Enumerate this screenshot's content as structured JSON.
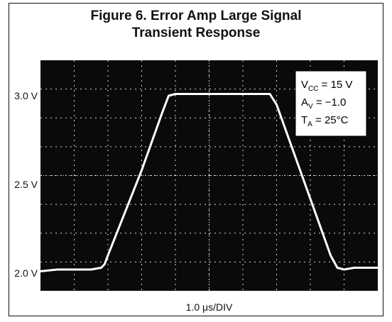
{
  "figure": {
    "title_line1": "Figure 6. Error Amp Large Signal",
    "title_line2": "Transient Response"
  },
  "chart_data": {
    "type": "line",
    "title": "Figure 6. Error Amp Large Signal Transient Response",
    "xlabel": "1.0 μs/DIV",
    "ylabel": "",
    "x_unit": "div",
    "xlim": [
      0,
      10
    ],
    "ylim": [
      1.9,
      3.2
    ],
    "y_ticks": [
      2.0,
      2.5,
      3.0
    ],
    "y_tick_labels": [
      "2.0 V",
      "2.5 V",
      "3.0 V"
    ],
    "grid": true,
    "background": "#0a0a0a",
    "trace_color": "#ffffff",
    "annotations": {
      "conditions": [
        {
          "main": "V",
          "sub": "CC",
          "rest": " = 15 V"
        },
        {
          "main": "A",
          "sub": "V",
          "rest": " = −1.0"
        },
        {
          "main": "T",
          "sub": "A",
          "rest": " = 25°C"
        }
      ]
    },
    "series": [
      {
        "x": [
          0.0,
          0.5,
          1.0,
          1.5,
          1.8,
          1.9,
          2.0,
          3.0,
          3.6,
          3.8,
          4.0,
          6.0,
          6.8,
          7.0,
          8.6,
          8.8,
          9.0,
          9.3,
          10.0
        ],
        "values": [
          2.01,
          2.02,
          2.02,
          2.02,
          2.03,
          2.05,
          2.1,
          2.58,
          2.9,
          3.0,
          3.01,
          3.01,
          3.01,
          2.95,
          2.1,
          2.03,
          2.02,
          2.03,
          2.03
        ]
      }
    ]
  }
}
